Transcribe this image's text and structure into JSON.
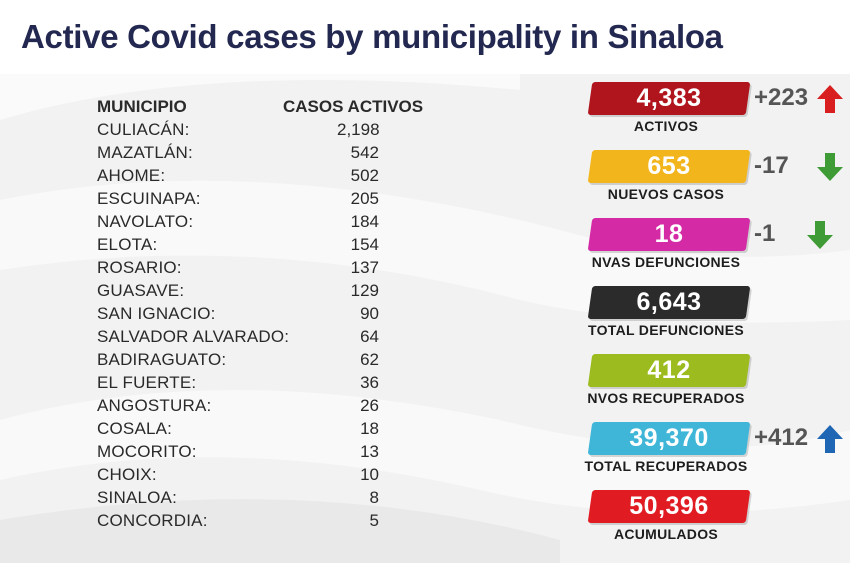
{
  "title": "Active Covid cases by municipality in Sinaloa",
  "table": {
    "headers": {
      "municipio": "MUNICIPIO",
      "casos": "CASOS ACTIVOS"
    },
    "rows": [
      {
        "name": "CULIACÁN:",
        "value": "2,198"
      },
      {
        "name": "MAZATLÁN:",
        "value": "542"
      },
      {
        "name": "AHOME:",
        "value": "502"
      },
      {
        "name": "ESCUINAPA:",
        "value": "205"
      },
      {
        "name": "NAVOLATO:",
        "value": "184"
      },
      {
        "name": "ELOTA:",
        "value": "154"
      },
      {
        "name": "ROSARIO:",
        "value": "137"
      },
      {
        "name": "GUASAVE:",
        "value": "129"
      },
      {
        "name": "SAN IGNACIO:",
        "value": "90"
      },
      {
        "name": "SALVADOR ALVARADO:",
        "value": "64"
      },
      {
        "name": "BADIRAGUATO:",
        "value": "62"
      },
      {
        "name": "EL FUERTE:",
        "value": "36"
      },
      {
        "name": "ANGOSTURA:",
        "value": "26"
      },
      {
        "name": "COSALA:",
        "value": "18"
      },
      {
        "name": "MOCORITO:",
        "value": "13"
      },
      {
        "name": "CHOIX:",
        "value": "10"
      },
      {
        "name": "SINALOA:",
        "value": "8"
      },
      {
        "name": "CONCORDIA:",
        "value": "5"
      }
    ]
  },
  "stats": [
    {
      "value": "4,383",
      "label": "ACTIVOS",
      "color": "#b0141c",
      "delta": "+223",
      "arrow": "up",
      "arrow_color": "#d81e1e",
      "arrow_icon": "up-arrow-icon"
    },
    {
      "value": "653",
      "label": "NUEVOS CASOS",
      "color": "#f2b51c",
      "delta": "-17",
      "arrow": "down",
      "arrow_color": "#3f9b35",
      "arrow_icon": "down-arrow-icon"
    },
    {
      "value": "18",
      "label": "NVAS DEFUNCIONES",
      "color": "#d42aa6",
      "delta": "-1",
      "arrow": "down",
      "arrow_color": "#3f9b35",
      "arrow_icon": "down-arrow-icon"
    },
    {
      "value": "6,643",
      "label": "TOTAL DEFUNCIONES",
      "color": "#2b2b2b",
      "delta": "",
      "arrow": "",
      "arrow_color": "",
      "arrow_icon": ""
    },
    {
      "value": "412",
      "label": "NVOS RECUPERADOS",
      "color": "#9bbb1e",
      "delta": "",
      "arrow": "",
      "arrow_color": "",
      "arrow_icon": ""
    },
    {
      "value": "39,370",
      "label": "TOTAL RECUPERADOS",
      "color": "#3fb6d8",
      "delta": "+412",
      "arrow": "up",
      "arrow_color": "#1f66b4",
      "arrow_icon": "up-arrow-icon"
    },
    {
      "value": "50,396",
      "label": "ACUMULADOS",
      "color": "#e01c22",
      "delta": "",
      "arrow": "",
      "arrow_color": "",
      "arrow_icon": ""
    }
  ]
}
